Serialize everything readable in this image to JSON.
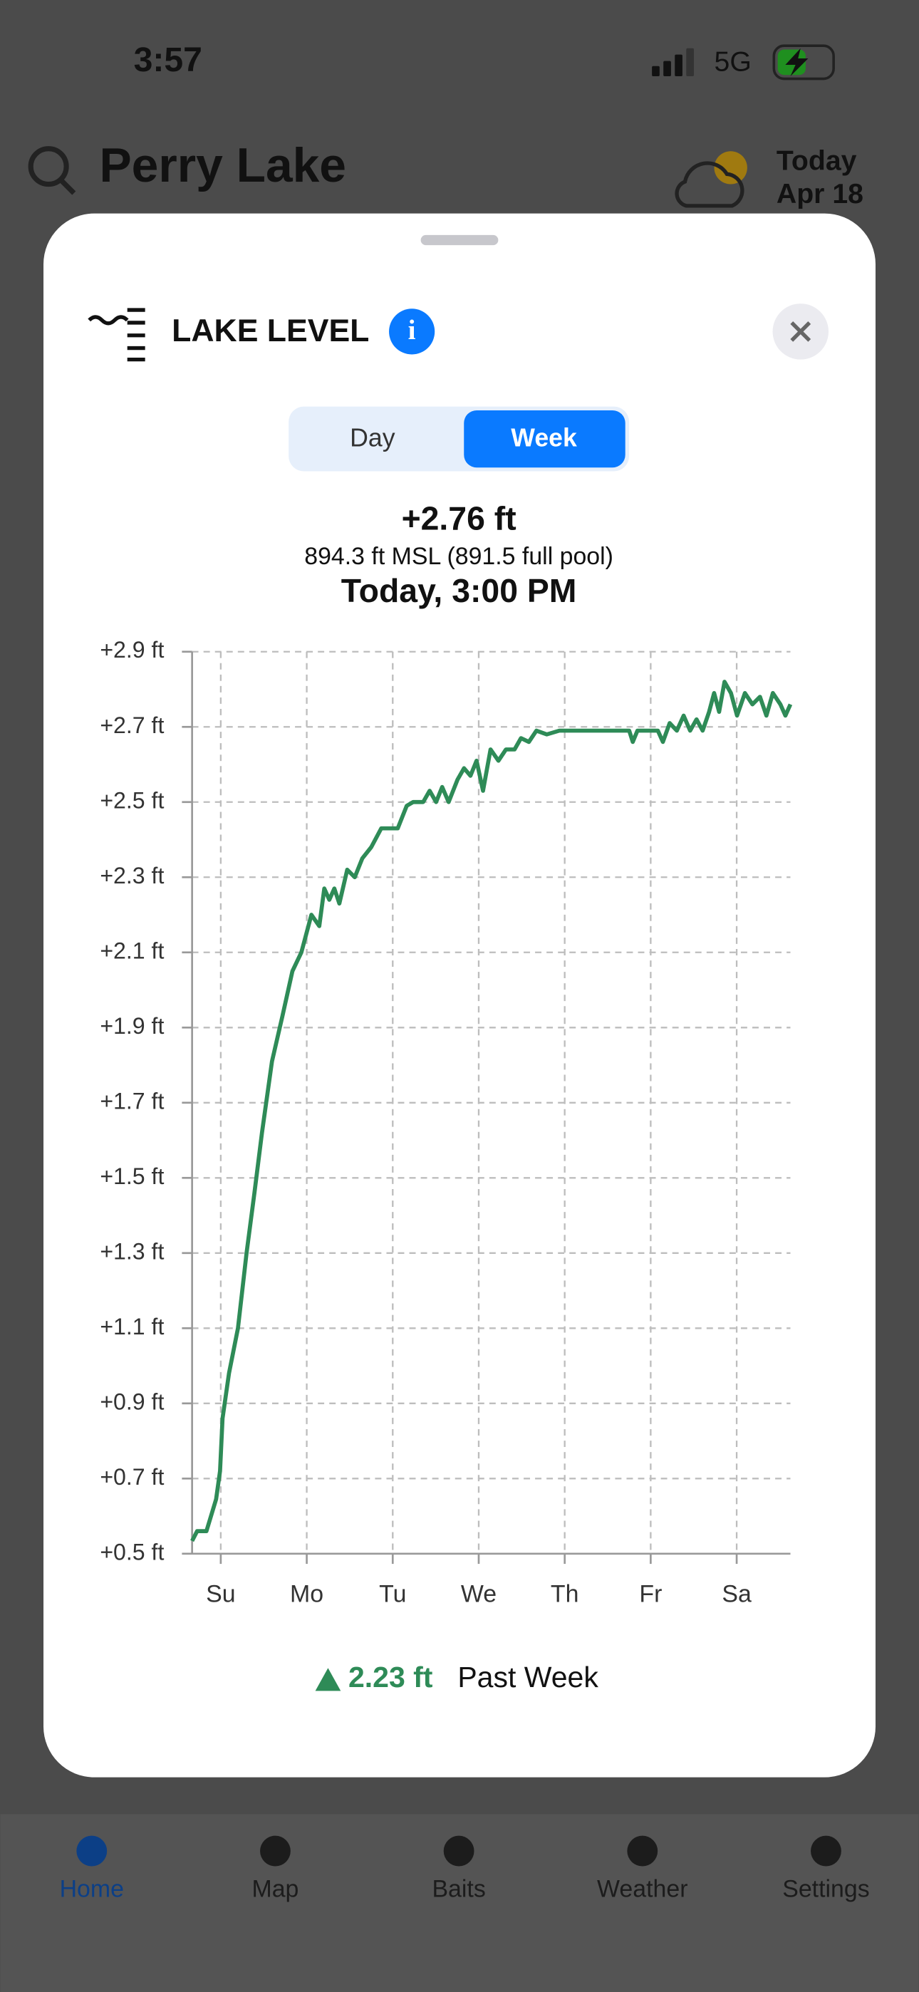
{
  "status_bar": {
    "time": "3:57",
    "network": "5G"
  },
  "header": {
    "title": "Perry Lake",
    "date_line1": "Today",
    "date_line2": "Apr 18"
  },
  "sheet": {
    "title": "LAKE LEVEL",
    "tabs": [
      "Day",
      "Week"
    ],
    "selected_tab": 1,
    "readout": {
      "change": "+2.76 ft",
      "elevation": "894.3 ft MSL (891.5 full pool)",
      "time": "Today, 3:00 PM"
    },
    "summary": {
      "change": "2.23 ft",
      "period": "Past Week"
    }
  },
  "chart_data": {
    "type": "line",
    "color": "#2e8b57",
    "grid": true,
    "xlim": [
      -8,
      159
    ],
    "ylim": [
      0.5,
      2.9
    ],
    "xticks": [
      {
        "value": 0,
        "label": "Su"
      },
      {
        "value": 24,
        "label": "Mo"
      },
      {
        "value": 48,
        "label": "Tu"
      },
      {
        "value": 72,
        "label": "We"
      },
      {
        "value": 96,
        "label": "Th"
      },
      {
        "value": 120,
        "label": "Fr"
      },
      {
        "value": 144,
        "label": "Sa"
      }
    ],
    "yticks": [
      {
        "value": 0.5,
        "label": "+0.5 ft"
      },
      {
        "value": 0.7,
        "label": "+0.7 ft"
      },
      {
        "value": 0.9,
        "label": "+0.9 ft"
      },
      {
        "value": 1.1,
        "label": "+1.1 ft"
      },
      {
        "value": 1.3,
        "label": "+1.3 ft"
      },
      {
        "value": 1.5,
        "label": "+1.5 ft"
      },
      {
        "value": 1.7,
        "label": "+1.7 ft"
      },
      {
        "value": 1.9,
        "label": "+1.9 ft"
      },
      {
        "value": 2.1,
        "label": "+2.1 ft"
      },
      {
        "value": 2.3,
        "label": "+2.3 ft"
      },
      {
        "value": 2.5,
        "label": "+2.5 ft"
      },
      {
        "value": 2.7,
        "label": "+2.7 ft"
      },
      {
        "value": 2.9,
        "label": "+2.9 ft"
      }
    ],
    "x": [
      -8,
      -6.6,
      -4,
      -1.3,
      -0.2,
      0.5,
      2.3,
      4.8,
      7.2,
      9.4,
      11.5,
      14.3,
      17.2,
      20,
      22.5,
      25.3,
      27.5,
      28.9,
      30.3,
      31.7,
      33.1,
      35.3,
      37.4,
      39.5,
      42,
      44.8,
      49.4,
      51.9,
      53.7,
      56.5,
      58.3,
      60.1,
      61.8,
      63.6,
      66.1,
      67.9,
      69.7,
      71.4,
      73.2,
      75.3,
      77.5,
      79.6,
      82,
      83.8,
      86,
      88.1,
      91,
      94.5,
      101.6,
      114,
      115,
      116.3,
      122,
      123.4,
      125.3,
      127.3,
      129.2,
      131,
      132.8,
      134.5,
      136.3,
      137.7,
      139.1,
      140.6,
      142.4,
      144.1,
      146.3,
      148.4,
      150.5,
      152.3,
      154.1,
      156.2,
      157.6,
      159
    ],
    "values": [
      0.534,
      0.56,
      0.56,
      0.645,
      0.72,
      0.86,
      0.98,
      1.1,
      1.3,
      1.46,
      1.62,
      1.81,
      1.93,
      2.05,
      2.1,
      2.2,
      2.17,
      2.27,
      2.24,
      2.27,
      2.23,
      2.32,
      2.3,
      2.35,
      2.38,
      2.43,
      2.43,
      2.49,
      2.5,
      2.5,
      2.53,
      2.5,
      2.54,
      2.5,
      2.56,
      2.59,
      2.57,
      2.61,
      2.53,
      2.64,
      2.61,
      2.64,
      2.64,
      2.67,
      2.66,
      2.69,
      2.68,
      2.69,
      2.69,
      2.69,
      2.66,
      2.69,
      2.69,
      2.66,
      2.71,
      2.69,
      2.73,
      2.69,
      2.72,
      2.69,
      2.74,
      2.79,
      2.74,
      2.82,
      2.79,
      2.73,
      2.79,
      2.76,
      2.78,
      2.73,
      2.79,
      2.76,
      2.73,
      2.76
    ]
  },
  "nav": {
    "items": [
      "Home",
      "Map",
      "Baits",
      "Weather",
      "Settings"
    ],
    "active": 0
  }
}
